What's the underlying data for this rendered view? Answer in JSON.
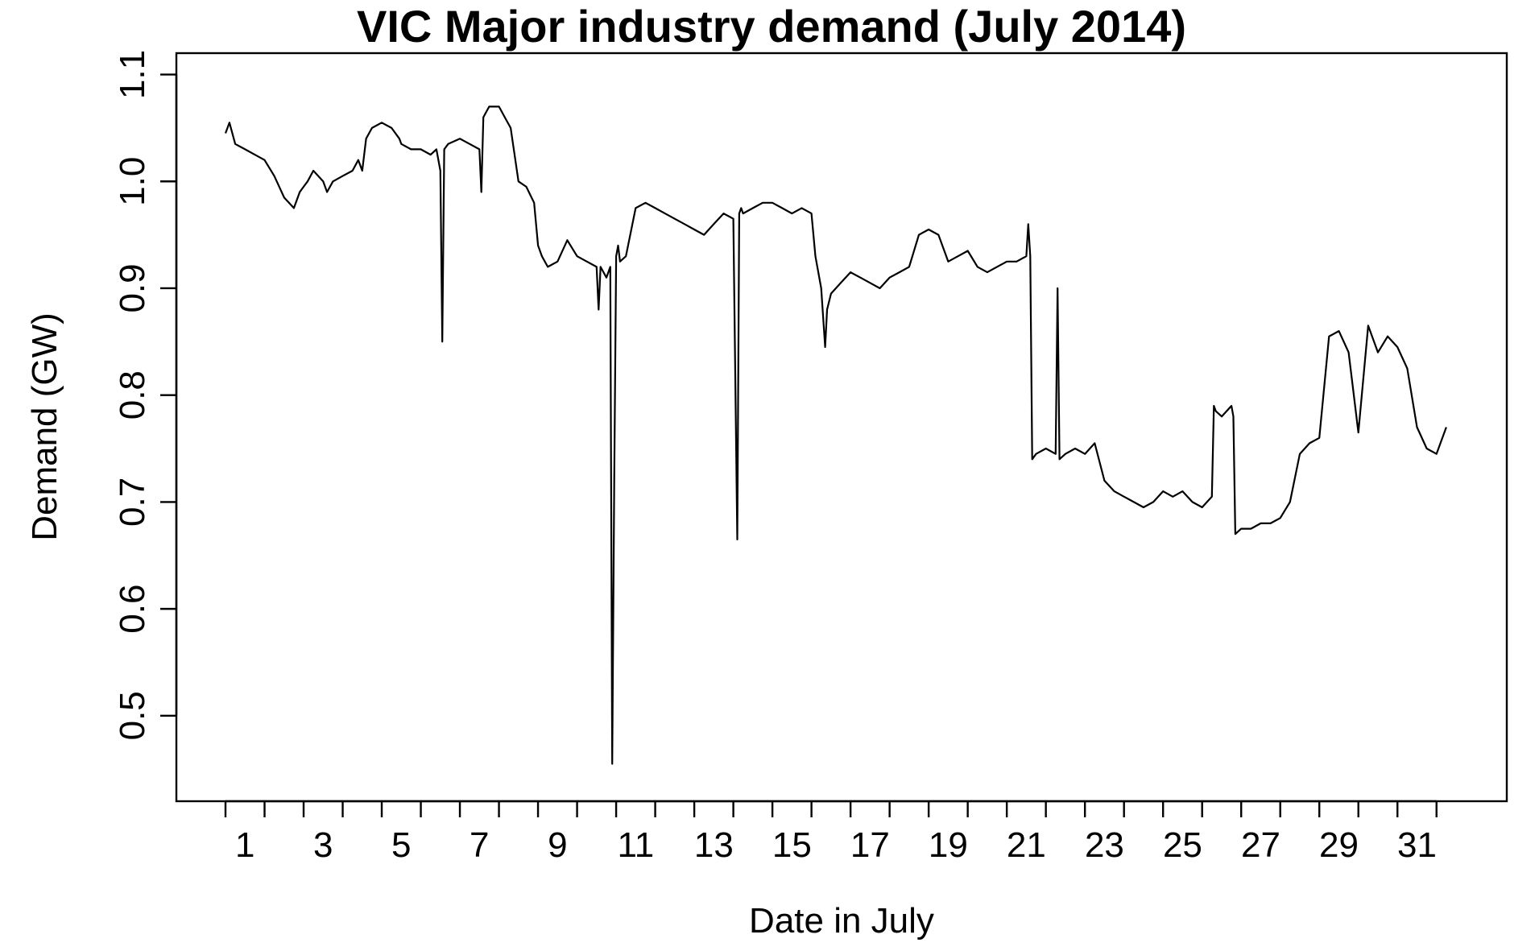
{
  "chart_data": {
    "type": "line",
    "title": "VIC Major industry demand (July 2014)",
    "xlabel": "Date in July",
    "ylabel": "Demand (GW)",
    "xlim": [
      0.5,
      32.0
    ],
    "ylim": [
      0.42,
      1.12
    ],
    "x_ticks": [
      0.5,
      1.5,
      2.5,
      3.5,
      4.5,
      5.5,
      6.5,
      7.5,
      8.5,
      9.5,
      10.5,
      11.5,
      12.5,
      13.5,
      14.5,
      15.5,
      16.5,
      17.5,
      18.5,
      19.5,
      20.5,
      21.5,
      22.5,
      23.5,
      24.5,
      25.5,
      26.5,
      27.5,
      28.5,
      29.5,
      30.5,
      31.5
    ],
    "x_tick_labels": [
      {
        "x": 1,
        "label": "1"
      },
      {
        "x": 3,
        "label": "3"
      },
      {
        "x": 5,
        "label": "5"
      },
      {
        "x": 7,
        "label": "7"
      },
      {
        "x": 9,
        "label": "9"
      },
      {
        "x": 11,
        "label": "11"
      },
      {
        "x": 13,
        "label": "13"
      },
      {
        "x": 15,
        "label": "15"
      },
      {
        "x": 17,
        "label": "17"
      },
      {
        "x": 19,
        "label": "19"
      },
      {
        "x": 21,
        "label": "21"
      },
      {
        "x": 23,
        "label": "23"
      },
      {
        "x": 25,
        "label": "25"
      },
      {
        "x": 27,
        "label": "27"
      },
      {
        "x": 29,
        "label": "29"
      },
      {
        "x": 31,
        "label": "31"
      }
    ],
    "y_ticks": [
      {
        "y": 0.5,
        "label": "0.5"
      },
      {
        "y": 0.6,
        "label": "0.6"
      },
      {
        "y": 0.7,
        "label": "0.7"
      },
      {
        "y": 0.8,
        "label": "0.8"
      },
      {
        "y": 0.9,
        "label": "0.9"
      },
      {
        "y": 1.0,
        "label": "1.0"
      },
      {
        "y": 1.1,
        "label": "1.1"
      }
    ],
    "grid": false,
    "legend": "none",
    "line_color": "#000000",
    "series": [
      {
        "x": [
          0.5,
          0.6,
          0.75,
          1.0,
          1.25,
          1.5,
          1.75,
          2.0,
          2.25,
          2.4,
          2.5,
          2.6,
          2.75,
          3.0,
          3.1,
          3.25,
          3.5,
          3.75,
          3.9,
          4.0,
          4.1,
          4.25,
          4.5,
          4.75,
          4.95,
          5.0,
          5.25,
          5.5,
          5.75,
          5.9,
          6.0,
          6.05,
          6.1,
          6.2,
          6.5,
          6.75,
          7.0,
          7.05,
          7.1,
          7.25,
          7.5,
          7.65,
          7.8,
          8.0,
          8.2,
          8.4,
          8.5,
          8.6,
          8.75,
          9.0,
          9.25,
          9.5,
          9.75,
          10.0,
          10.05,
          10.1,
          10.25,
          10.35,
          10.4,
          10.45,
          10.5,
          10.55,
          10.6,
          10.75,
          11.0,
          11.25,
          11.5,
          11.75,
          12.0,
          12.25,
          12.5,
          12.75,
          13.0,
          13.25,
          13.5,
          13.6,
          13.65,
          13.7,
          13.75,
          14.0,
          14.25,
          14.5,
          14.75,
          15.0,
          15.25,
          15.5,
          15.6,
          15.75,
          15.85,
          15.9,
          16.0,
          16.25,
          16.5,
          16.75,
          17.0,
          17.25,
          17.5,
          17.75,
          18.0,
          18.25,
          18.5,
          18.75,
          19.0,
          19.25,
          19.5,
          19.75,
          20.0,
          20.25,
          20.5,
          20.75,
          21.0,
          21.05,
          21.1,
          21.15,
          21.25,
          21.5,
          21.75,
          21.8,
          21.85,
          22.0,
          22.25,
          22.5,
          22.75,
          23.0,
          23.25,
          23.5,
          23.75,
          24.0,
          24.25,
          24.5,
          24.75,
          25.0,
          25.25,
          25.5,
          25.75,
          25.8,
          25.85,
          26.0,
          26.25,
          26.3,
          26.35,
          26.5,
          26.75,
          27.0,
          27.25,
          27.5,
          27.75,
          28.0,
          28.25,
          28.5,
          28.75,
          29.0,
          29.25,
          29.5,
          29.75,
          30.0,
          30.25,
          30.5,
          30.75,
          31.0,
          31.25,
          31.5,
          31.75
        ],
        "y": [
          1.045,
          1.055,
          1.035,
          1.03,
          1.025,
          1.02,
          1.005,
          0.985,
          0.975,
          0.99,
          0.995,
          1.0,
          1.01,
          1.0,
          0.99,
          1.0,
          1.005,
          1.01,
          1.02,
          1.01,
          1.04,
          1.05,
          1.055,
          1.05,
          1.04,
          1.035,
          1.03,
          1.03,
          1.025,
          1.03,
          1.01,
          0.85,
          1.03,
          1.035,
          1.04,
          1.035,
          1.03,
          0.99,
          1.06,
          1.07,
          1.07,
          1.06,
          1.05,
          1.0,
          0.995,
          0.98,
          0.94,
          0.93,
          0.92,
          0.925,
          0.945,
          0.93,
          0.925,
          0.92,
          0.88,
          0.92,
          0.91,
          0.92,
          0.455,
          0.72,
          0.93,
          0.94,
          0.925,
          0.93,
          0.975,
          0.98,
          0.975,
          0.97,
          0.965,
          0.96,
          0.955,
          0.95,
          0.96,
          0.97,
          0.965,
          0.665,
          0.97,
          0.975,
          0.97,
          0.975,
          0.98,
          0.98,
          0.975,
          0.97,
          0.975,
          0.97,
          0.93,
          0.9,
          0.845,
          0.88,
          0.895,
          0.905,
          0.915,
          0.91,
          0.905,
          0.9,
          0.91,
          0.915,
          0.92,
          0.95,
          0.955,
          0.95,
          0.925,
          0.93,
          0.935,
          0.92,
          0.915,
          0.92,
          0.925,
          0.925,
          0.93,
          0.96,
          0.93,
          0.74,
          0.745,
          0.75,
          0.745,
          0.9,
          0.74,
          0.745,
          0.75,
          0.745,
          0.755,
          0.72,
          0.71,
          0.705,
          0.7,
          0.695,
          0.7,
          0.71,
          0.705,
          0.71,
          0.7,
          0.695,
          0.705,
          0.79,
          0.785,
          0.78,
          0.79,
          0.78,
          0.67,
          0.675,
          0.675,
          0.68,
          0.68,
          0.685,
          0.7,
          0.745,
          0.755,
          0.76,
          0.855,
          0.86,
          0.84,
          0.765,
          0.865,
          0.84,
          0.855,
          0.845,
          0.825,
          0.77,
          0.75,
          0.745,
          0.77
        ]
      }
    ]
  }
}
